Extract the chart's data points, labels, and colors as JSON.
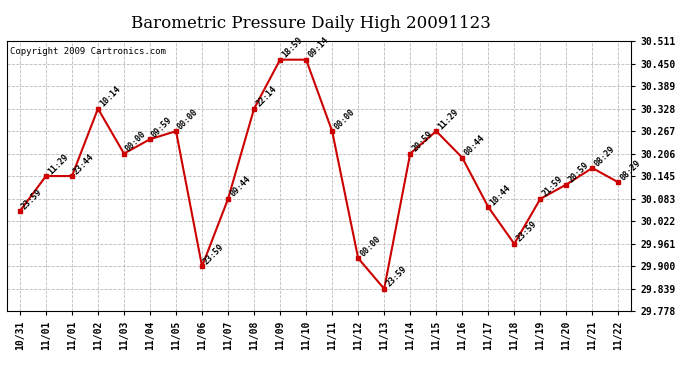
{
  "title": "Barometric Pressure Daily High 20091123",
  "copyright": "Copyright 2009 Cartronics.com",
  "x_tick_labels": [
    "10/31",
    "11/01",
    "11/01",
    "11/02",
    "11/03",
    "11/04",
    "11/05",
    "11/06",
    "11/07",
    "11/08",
    "11/09",
    "11/10",
    "11/11",
    "11/12",
    "11/13",
    "11/14",
    "11/15",
    "11/16",
    "11/17",
    "11/18",
    "11/19",
    "11/20",
    "11/21",
    "11/22"
  ],
  "y_values": [
    30.05,
    30.145,
    30.145,
    30.328,
    30.206,
    30.245,
    30.267,
    29.9,
    30.083,
    30.328,
    30.461,
    30.461,
    30.267,
    29.922,
    29.839,
    30.206,
    30.267,
    30.195,
    30.061,
    29.961,
    30.083,
    30.122,
    30.167,
    30.128
  ],
  "time_labels": [
    "23:59",
    "11:29",
    "23:44",
    "10:14",
    "00:00",
    "09:59",
    "00:00",
    "23:59",
    "09:44",
    "22:14",
    "18:59",
    "09:14",
    "00:00",
    "00:00",
    "23:59",
    "20:59",
    "11:29",
    "00:44",
    "10:44",
    "23:59",
    "21:59",
    "20:59",
    "08:29",
    "08:29"
  ],
  "y_ticks": [
    29.778,
    29.839,
    29.9,
    29.961,
    30.022,
    30.083,
    30.145,
    30.206,
    30.267,
    30.328,
    30.389,
    30.45,
    30.511
  ],
  "y_min": 29.778,
  "y_max": 30.511,
  "line_color": "#cc0000",
  "marker_color": "#cc0000",
  "bg_color": "#ffffff",
  "grid_color": "#bbbbbb",
  "title_fontsize": 12,
  "copyright_fontsize": 6.5,
  "label_fontsize": 6,
  "tick_fontsize": 7
}
